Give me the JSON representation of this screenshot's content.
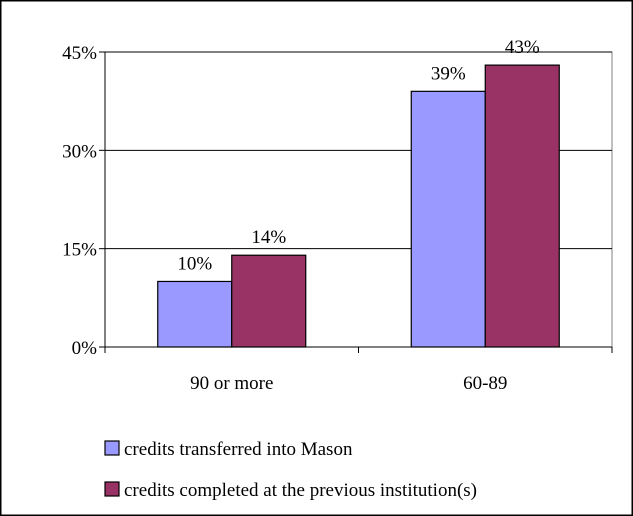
{
  "chart_data": {
    "type": "bar",
    "title": "",
    "xlabel": "",
    "ylabel": "",
    "categories": [
      "90 or more",
      "60-89"
    ],
    "series": [
      {
        "name": "credits transferred into Mason",
        "values": [
          10,
          39
        ],
        "labels": [
          "10%",
          "39%"
        ],
        "color": "#9999ff"
      },
      {
        "name": "credits completed at the previous institution(s)",
        "values": [
          14,
          43
        ],
        "labels": [
          "14%",
          "43%"
        ],
        "color": "#993366"
      }
    ],
    "ylim": [
      0,
      45
    ],
    "yticks": [
      0,
      15,
      30,
      45
    ],
    "ytick_labels": [
      "0%",
      "15%",
      "30%",
      "45%"
    ],
    "grid": true,
    "legend_position": "bottom"
  }
}
